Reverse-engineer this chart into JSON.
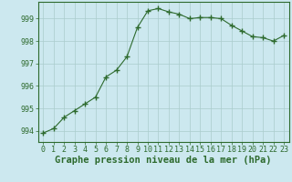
{
  "x": [
    0,
    1,
    2,
    3,
    4,
    5,
    6,
    7,
    8,
    9,
    10,
    11,
    12,
    13,
    14,
    15,
    16,
    17,
    18,
    19,
    20,
    21,
    22,
    23
  ],
  "y": [
    993.9,
    994.1,
    994.6,
    994.9,
    995.2,
    995.5,
    996.4,
    996.7,
    997.3,
    998.6,
    999.35,
    999.45,
    999.3,
    999.2,
    999.0,
    999.05,
    999.05,
    999.0,
    998.7,
    998.45,
    998.2,
    998.15,
    998.0,
    998.25
  ],
  "line_color": "#2d6a2d",
  "marker": "+",
  "marker_color": "#2d6a2d",
  "bg_color": "#cce8ef",
  "grid_color": "#aacccc",
  "axis_color": "#2d6a2d",
  "title": "Graphe pression niveau de la mer (hPa)",
  "ylabel_ticks": [
    994,
    995,
    996,
    997,
    998,
    999
  ],
  "xlim": [
    -0.5,
    23.5
  ],
  "ylim": [
    993.5,
    999.75
  ],
  "title_fontsize": 7.5,
  "tick_fontsize": 6.0,
  "border_color": "#2d6a2d"
}
